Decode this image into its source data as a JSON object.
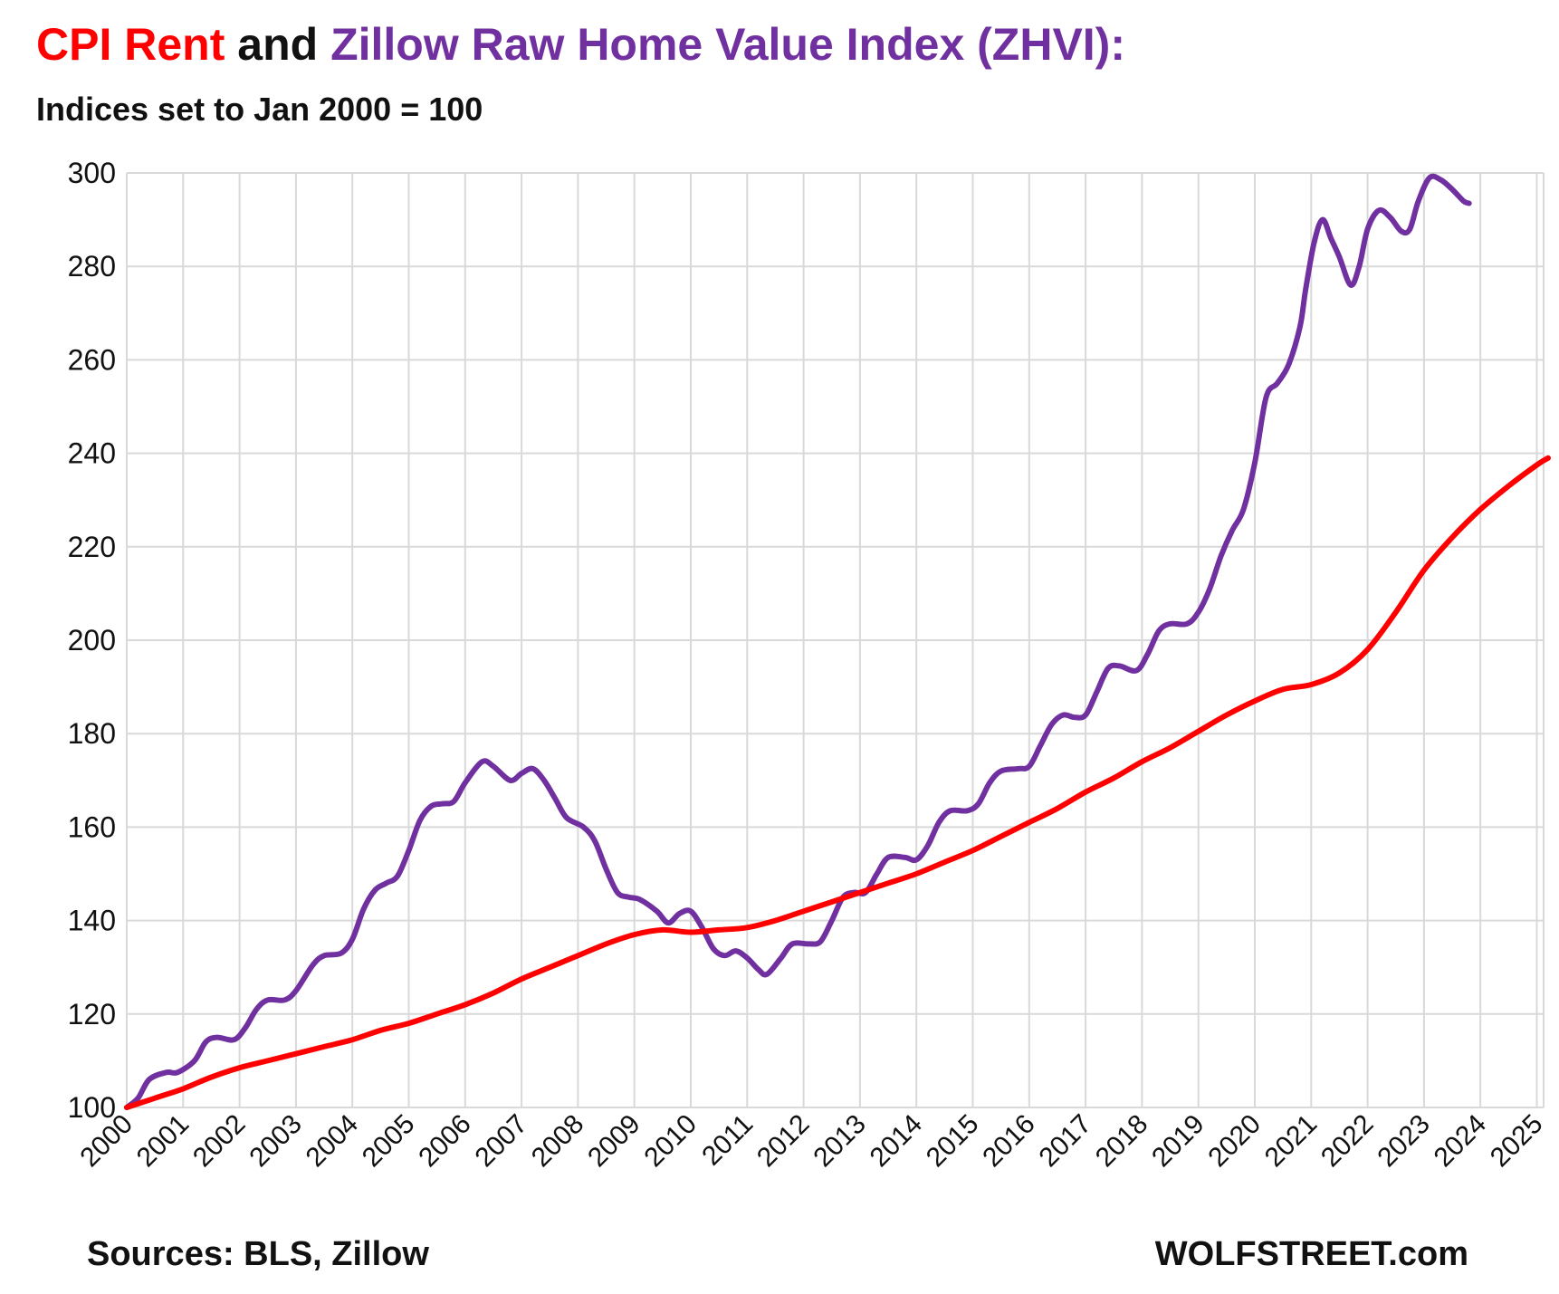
{
  "title": {
    "part1": "CPI Rent",
    "part2": "and",
    "part3": "Zillow Raw Home Value Index (ZHVI):"
  },
  "subtitle": "Indices set to Jan 2000 = 100",
  "footer": {
    "sources": "Sources: BLS, Zillow",
    "brand": "WOLFSTREET.com"
  },
  "colors": {
    "rent": "#ff0000",
    "zhvi": "#7030a0",
    "grid": "#d9d9d9"
  },
  "chart_data": {
    "type": "line",
    "title": "CPI Rent and Zillow Raw Home Value Index (ZHVI):",
    "subtitle": "Indices set to Jan 2000 = 100",
    "xlabel": "",
    "ylabel": "",
    "xlim": [
      2000,
      2025.2
    ],
    "ylim": [
      100,
      300
    ],
    "grid": true,
    "legend": "none",
    "x_ticks": [
      "2000",
      "2001",
      "2002",
      "2003",
      "2004",
      "2005",
      "2006",
      "2007",
      "2008",
      "2009",
      "2010",
      "2011",
      "2012",
      "2013",
      "2014",
      "2015",
      "2016",
      "2017",
      "2018",
      "2019",
      "2020",
      "2021",
      "2022",
      "2023",
      "2024",
      "2025"
    ],
    "y_ticks": [
      100,
      120,
      140,
      160,
      180,
      200,
      220,
      240,
      260,
      280,
      300
    ],
    "series": [
      {
        "name": "CPI Rent",
        "color": "#ff0000",
        "points": [
          [
            2000,
            100
          ],
          [
            2000.5,
            102
          ],
          [
            2001,
            104
          ],
          [
            2001.5,
            106.5
          ],
          [
            2002,
            108.5
          ],
          [
            2002.5,
            110
          ],
          [
            2003,
            111.5
          ],
          [
            2003.5,
            113
          ],
          [
            2004,
            114.5
          ],
          [
            2004.5,
            116.5
          ],
          [
            2005,
            118
          ],
          [
            2005.5,
            120
          ],
          [
            2006,
            122
          ],
          [
            2006.5,
            124.5
          ],
          [
            2007,
            127.5
          ],
          [
            2007.5,
            130
          ],
          [
            2008,
            132.5
          ],
          [
            2008.5,
            135
          ],
          [
            2009,
            137
          ],
          [
            2009.5,
            138
          ],
          [
            2010,
            137.5
          ],
          [
            2010.5,
            138
          ],
          [
            2011,
            138.5
          ],
          [
            2011.5,
            140
          ],
          [
            2012,
            142
          ],
          [
            2012.5,
            144
          ],
          [
            2013,
            146
          ],
          [
            2013.5,
            148
          ],
          [
            2014,
            150
          ],
          [
            2014.5,
            152.5
          ],
          [
            2015,
            155
          ],
          [
            2015.5,
            158
          ],
          [
            2016,
            161
          ],
          [
            2016.5,
            164
          ],
          [
            2017,
            167.5
          ],
          [
            2017.5,
            170.5
          ],
          [
            2018,
            174
          ],
          [
            2018.5,
            177
          ],
          [
            2019,
            180.5
          ],
          [
            2019.5,
            184
          ],
          [
            2020,
            187
          ],
          [
            2020.5,
            189.5
          ],
          [
            2021,
            190.5
          ],
          [
            2021.5,
            193
          ],
          [
            2022,
            198
          ],
          [
            2022.5,
            206
          ],
          [
            2023,
            215
          ],
          [
            2023.5,
            222
          ],
          [
            2024,
            228
          ],
          [
            2024.5,
            233
          ],
          [
            2025,
            237.5
          ],
          [
            2025.2,
            239
          ]
        ]
      },
      {
        "name": "Zillow Raw Home Value Index (ZHVI)",
        "color": "#7030a0",
        "points": [
          [
            2000,
            100
          ],
          [
            2000.2,
            102
          ],
          [
            2000.4,
            106
          ],
          [
            2000.7,
            107.5
          ],
          [
            2000.9,
            107.5
          ],
          [
            2001.2,
            110
          ],
          [
            2001.4,
            114
          ],
          [
            2001.6,
            115
          ],
          [
            2001.9,
            114.5
          ],
          [
            2002.1,
            117
          ],
          [
            2002.3,
            121
          ],
          [
            2002.5,
            123
          ],
          [
            2002.8,
            123
          ],
          [
            2003,
            125
          ],
          [
            2003.3,
            130.5
          ],
          [
            2003.5,
            132.5
          ],
          [
            2003.8,
            133
          ],
          [
            2004,
            136
          ],
          [
            2004.2,
            142.5
          ],
          [
            2004.4,
            146.5
          ],
          [
            2004.6,
            148
          ],
          [
            2004.8,
            149.5
          ],
          [
            2005,
            155
          ],
          [
            2005.2,
            161.5
          ],
          [
            2005.4,
            164.5
          ],
          [
            2005.6,
            165
          ],
          [
            2005.8,
            165.5
          ],
          [
            2006,
            169.5
          ],
          [
            2006.3,
            174
          ],
          [
            2006.5,
            173
          ],
          [
            2006.8,
            170
          ],
          [
            2007,
            171.5
          ],
          [
            2007.2,
            172.5
          ],
          [
            2007.4,
            170
          ],
          [
            2007.6,
            166
          ],
          [
            2007.8,
            162
          ],
          [
            2008.1,
            160
          ],
          [
            2008.3,
            157
          ],
          [
            2008.5,
            151
          ],
          [
            2008.7,
            146
          ],
          [
            2008.9,
            145
          ],
          [
            2009.1,
            144.5
          ],
          [
            2009.4,
            142
          ],
          [
            2009.6,
            139.5
          ],
          [
            2009.8,
            141.5
          ],
          [
            2010,
            142
          ],
          [
            2010.2,
            138.5
          ],
          [
            2010.4,
            134
          ],
          [
            2010.6,
            132.5
          ],
          [
            2010.8,
            133.5
          ],
          [
            2011,
            132
          ],
          [
            2011.2,
            129.5
          ],
          [
            2011.35,
            128.5
          ],
          [
            2011.6,
            132
          ],
          [
            2011.8,
            135
          ],
          [
            2012.1,
            135
          ],
          [
            2012.3,
            135.5
          ],
          [
            2012.5,
            140
          ],
          [
            2012.7,
            145
          ],
          [
            2012.9,
            146
          ],
          [
            2013.1,
            146
          ],
          [
            2013.3,
            150
          ],
          [
            2013.5,
            153.5
          ],
          [
            2013.8,
            153.5
          ],
          [
            2014,
            153
          ],
          [
            2014.2,
            156
          ],
          [
            2014.4,
            161
          ],
          [
            2014.6,
            163.5
          ],
          [
            2014.9,
            163.5
          ],
          [
            2015.1,
            165
          ],
          [
            2015.3,
            169.5
          ],
          [
            2015.5,
            172
          ],
          [
            2015.8,
            172.5
          ],
          [
            2016,
            173
          ],
          [
            2016.2,
            177.5
          ],
          [
            2016.4,
            182
          ],
          [
            2016.6,
            184
          ],
          [
            2016.8,
            183.5
          ],
          [
            2017,
            184
          ],
          [
            2017.2,
            189
          ],
          [
            2017.4,
            194
          ],
          [
            2017.6,
            194.5
          ],
          [
            2017.9,
            193.5
          ],
          [
            2018.1,
            197
          ],
          [
            2018.3,
            202
          ],
          [
            2018.5,
            203.5
          ],
          [
            2018.8,
            203.5
          ],
          [
            2019,
            206
          ],
          [
            2019.2,
            211
          ],
          [
            2019.4,
            218
          ],
          [
            2019.6,
            223.5
          ],
          [
            2019.8,
            228
          ],
          [
            2020,
            238
          ],
          [
            2020.2,
            252
          ],
          [
            2020.4,
            255
          ],
          [
            2020.6,
            259
          ],
          [
            2020.8,
            267
          ],
          [
            2020.9,
            275
          ],
          [
            2021.05,
            285
          ],
          [
            2021.2,
            290
          ],
          [
            2021.35,
            286
          ],
          [
            2021.5,
            282
          ],
          [
            2021.7,
            276
          ],
          [
            2021.85,
            280
          ],
          [
            2022,
            288
          ],
          [
            2022.2,
            292
          ],
          [
            2022.4,
            290.5
          ],
          [
            2022.6,
            287.5
          ],
          [
            2022.75,
            288
          ],
          [
            2022.9,
            294
          ],
          [
            2023.1,
            299
          ],
          [
            2023.3,
            298.5
          ],
          [
            2023.5,
            296.5
          ],
          [
            2023.7,
            294
          ],
          [
            2023.8,
            293.5
          ]
        ]
      }
    ]
  }
}
